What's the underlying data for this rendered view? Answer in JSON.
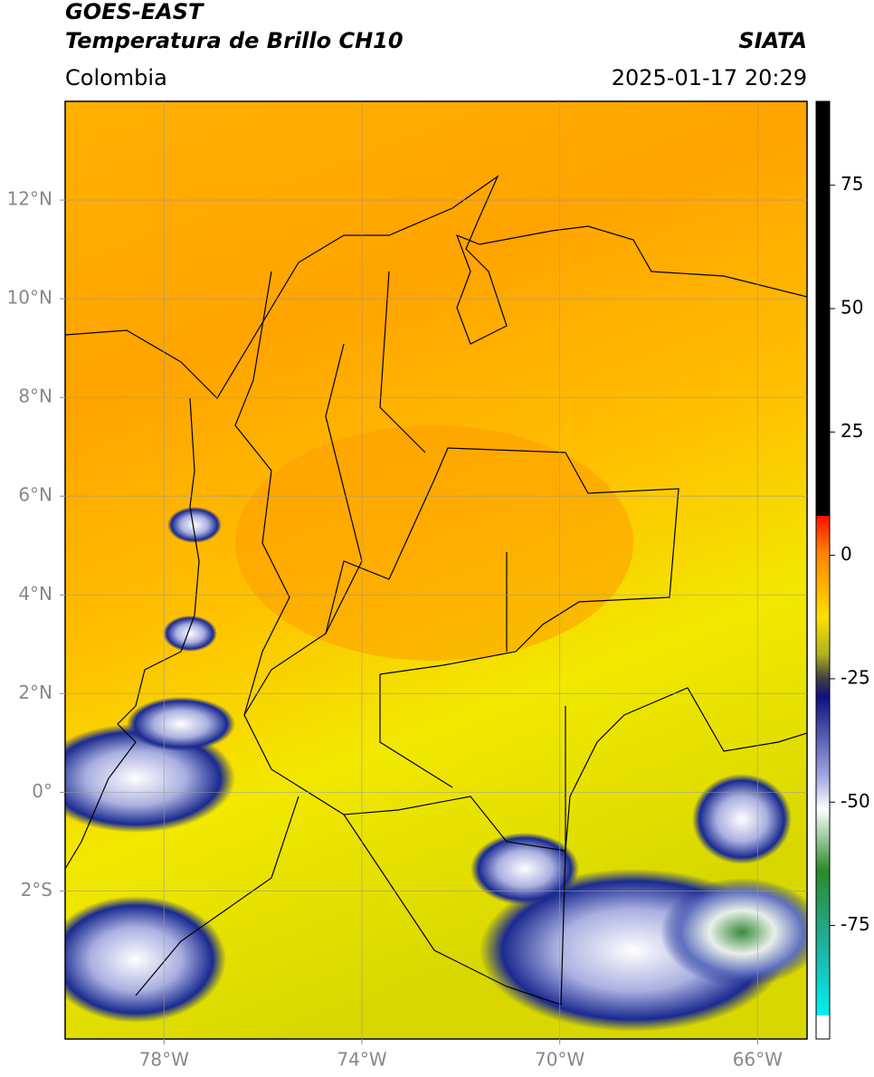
{
  "header": {
    "title": "GOES-EAST",
    "subtitle": "Temperatura de Brillo CH10",
    "source": "SIATA",
    "region": "Colombia",
    "timestamp": "2025-01-17 20:29"
  },
  "map": {
    "xlim": [
      -80,
      -65
    ],
    "ylim": [
      -5,
      14
    ],
    "grid": true,
    "xticks": [
      {
        "value": -78,
        "label": "78°W"
      },
      {
        "value": -74,
        "label": "74°W"
      },
      {
        "value": -70,
        "label": "70°W"
      },
      {
        "value": -66,
        "label": "66°W"
      }
    ],
    "yticks": [
      {
        "value": 12,
        "label": "12°N"
      },
      {
        "value": 10,
        "label": "10°N"
      },
      {
        "value": 8,
        "label": "8°N"
      },
      {
        "value": 6,
        "label": "6°N"
      },
      {
        "value": 4,
        "label": "4°N"
      },
      {
        "value": 2,
        "label": "2°N"
      },
      {
        "value": 0,
        "label": "0°"
      },
      {
        "value": -2,
        "label": "2°S"
      }
    ]
  },
  "colorbar": {
    "lim": [
      -98,
      92
    ],
    "ticks": [
      75,
      50,
      25,
      0,
      -25,
      -50,
      -75
    ]
  }
}
